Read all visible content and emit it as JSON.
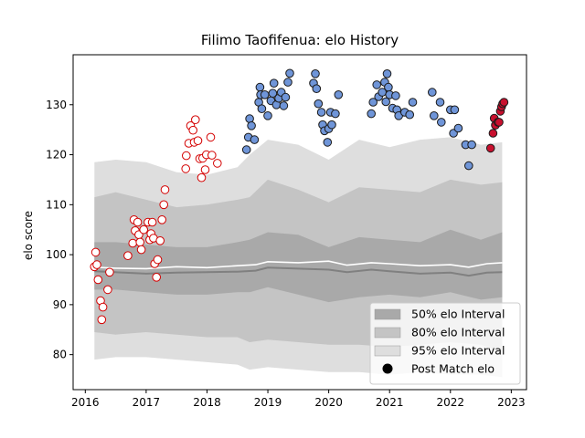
{
  "chart_data": {
    "type": "scatter",
    "title": "Filimo Taofifenua: elo History",
    "xlabel": "",
    "ylabel": "elo score",
    "xlim": [
      2015.8,
      2023.25
    ],
    "ylim": [
      73,
      140
    ],
    "x_ticks": [
      2016,
      2017,
      2018,
      2019,
      2020,
      2021,
      2022,
      2023
    ],
    "y_ticks": [
      80,
      90,
      100,
      110,
      120,
      130
    ],
    "grid": false,
    "legend_position": "lower-right",
    "legend": [
      {
        "label": "50% elo Interval",
        "kind": "band",
        "color": "#a9a9a9"
      },
      {
        "label": "80% elo Interval",
        "kind": "band",
        "color": "#c4c4c4"
      },
      {
        "label": "95% elo Interval",
        "kind": "band",
        "color": "#dedede"
      },
      {
        "label": "Post Match elo",
        "kind": "marker",
        "color": "#000000"
      }
    ],
    "bands": {
      "x": [
        2016.15,
        2016.5,
        2017.0,
        2017.5,
        2018.0,
        2018.5,
        2018.7,
        2019.0,
        2019.5,
        2020.0,
        2020.5,
        2021.0,
        2021.5,
        2022.0,
        2022.5,
        2022.85
      ],
      "p95_upper": [
        118.5,
        119.0,
        118.5,
        116.5,
        116.0,
        117.5,
        120.0,
        123.0,
        122.0,
        119.0,
        123.0,
        121.5,
        123.0,
        123.5,
        122.0,
        122.5
      ],
      "p80_upper": [
        111.5,
        112.5,
        111.0,
        109.5,
        110.0,
        111.0,
        111.5,
        115.0,
        113.0,
        110.5,
        113.5,
        113.0,
        112.5,
        115.0,
        114.0,
        114.5
      ],
      "p50_upper": [
        102.5,
        102.5,
        102.0,
        101.5,
        101.5,
        102.5,
        103.0,
        104.5,
        104.0,
        101.5,
        103.5,
        103.0,
        102.5,
        105.0,
        103.0,
        104.5
      ],
      "p50_lower": [
        93.0,
        93.0,
        92.5,
        92.0,
        92.0,
        92.5,
        92.5,
        93.5,
        92.0,
        90.5,
        91.5,
        92.0,
        91.5,
        92.5,
        91.0,
        91.5
      ],
      "p80_lower": [
        84.5,
        84.0,
        84.5,
        84.0,
        83.5,
        83.5,
        82.5,
        83.0,
        82.5,
        82.0,
        82.0,
        81.5,
        82.0,
        82.5,
        82.0,
        80.5
      ],
      "p95_lower": [
        79.0,
        79.5,
        79.5,
        79.0,
        78.5,
        78.0,
        77.0,
        77.5,
        77.0,
        76.5,
        76.5,
        76.0,
        76.5,
        76.0,
        76.0,
        75.5
      ]
    },
    "median_line": {
      "x": [
        2016.15,
        2016.5,
        2017.0,
        2017.5,
        2018.0,
        2018.5,
        2018.8,
        2019.0,
        2019.5,
        2020.0,
        2020.3,
        2020.7,
        2021.0,
        2021.5,
        2022.0,
        2022.3,
        2022.6,
        2022.85
      ],
      "y": [
        96.7,
        96.5,
        96.2,
        96.4,
        96.5,
        96.6,
        96.8,
        97.4,
        97.2,
        97.0,
        96.5,
        97.0,
        96.7,
        96.2,
        96.4,
        95.8,
        96.4,
        96.5
      ]
    },
    "mean_line": {
      "x": [
        2016.15,
        2016.5,
        2017.0,
        2017.5,
        2018.0,
        2018.5,
        2018.8,
        2019.0,
        2019.5,
        2020.0,
        2020.3,
        2020.7,
        2021.0,
        2021.5,
        2022.0,
        2022.3,
        2022.6,
        2022.85
      ],
      "y": [
        97.5,
        97.3,
        97.2,
        97.6,
        97.4,
        97.8,
        98.0,
        98.6,
        98.4,
        98.7,
        97.9,
        98.4,
        98.2,
        97.8,
        98.0,
        97.5,
        98.2,
        98.4
      ]
    },
    "series": [
      {
        "color_fill": "#ffffff",
        "color_edge": "#d40000",
        "points": [
          [
            2016.15,
            97.6
          ],
          [
            2016.17,
            100.5
          ],
          [
            2016.19,
            98.0
          ],
          [
            2016.21,
            95.0
          ],
          [
            2016.25,
            90.8
          ],
          [
            2016.27,
            87.0
          ],
          [
            2016.29,
            89.5
          ],
          [
            2016.37,
            93.0
          ],
          [
            2016.4,
            96.5
          ],
          [
            2016.7,
            99.8
          ],
          [
            2016.78,
            102.3
          ],
          [
            2016.8,
            107.0
          ],
          [
            2016.82,
            104.8
          ],
          [
            2016.86,
            106.5
          ],
          [
            2016.88,
            104.0
          ],
          [
            2016.9,
            102.5
          ],
          [
            2016.92,
            101.0
          ],
          [
            2016.96,
            105.0
          ],
          [
            2017.03,
            106.5
          ],
          [
            2017.06,
            103.0
          ],
          [
            2017.08,
            104.2
          ],
          [
            2017.1,
            106.5
          ],
          [
            2017.12,
            103.3
          ],
          [
            2017.14,
            98.2
          ],
          [
            2017.17,
            95.5
          ],
          [
            2017.19,
            99.0
          ],
          [
            2017.23,
            102.8
          ],
          [
            2017.26,
            107.0
          ],
          [
            2017.29,
            110.0
          ],
          [
            2017.31,
            113.0
          ],
          [
            2017.65,
            117.2
          ],
          [
            2017.66,
            119.8
          ],
          [
            2017.7,
            122.3
          ],
          [
            2017.73,
            125.8
          ],
          [
            2017.77,
            124.9
          ],
          [
            2017.79,
            122.5
          ],
          [
            2017.81,
            127.0
          ],
          [
            2017.85,
            122.8
          ],
          [
            2017.88,
            119.2
          ],
          [
            2017.91,
            115.4
          ],
          [
            2017.93,
            119.3
          ],
          [
            2017.97,
            117.0
          ],
          [
            2017.99,
            120.0
          ],
          [
            2018.06,
            123.5
          ],
          [
            2018.08,
            119.9
          ],
          [
            2018.17,
            118.3
          ]
        ]
      },
      {
        "color_fill": "#6f95d8",
        "color_edge": "#1a1a1a",
        "points": [
          [
            2018.65,
            121.0
          ],
          [
            2018.68,
            123.5
          ],
          [
            2018.7,
            127.2
          ],
          [
            2018.73,
            125.8
          ],
          [
            2018.78,
            123.0
          ],
          [
            2018.85,
            130.5
          ],
          [
            2018.87,
            133.5
          ],
          [
            2018.88,
            132.0
          ],
          [
            2018.9,
            129.2
          ],
          [
            2018.95,
            132.0
          ],
          [
            2019.0,
            127.8
          ],
          [
            2019.05,
            130.8
          ],
          [
            2019.08,
            132.3
          ],
          [
            2019.1,
            134.3
          ],
          [
            2019.14,
            130.0
          ],
          [
            2019.18,
            131.3
          ],
          [
            2019.22,
            132.5
          ],
          [
            2019.26,
            129.8
          ],
          [
            2019.29,
            131.5
          ],
          [
            2019.33,
            134.5
          ],
          [
            2019.36,
            136.3
          ],
          [
            2019.75,
            134.3
          ],
          [
            2019.78,
            136.2
          ],
          [
            2019.8,
            133.2
          ],
          [
            2019.83,
            130.2
          ],
          [
            2019.88,
            128.5
          ],
          [
            2019.9,
            126.0
          ],
          [
            2019.93,
            124.8
          ],
          [
            2019.98,
            122.5
          ],
          [
            2020.0,
            125.2
          ],
          [
            2020.03,
            128.5
          ],
          [
            2020.05,
            126.0
          ],
          [
            2020.11,
            128.2
          ],
          [
            2020.16,
            132.0
          ],
          [
            2020.7,
            128.2
          ],
          [
            2020.73,
            130.5
          ],
          [
            2020.79,
            134.0
          ],
          [
            2020.82,
            131.6
          ],
          [
            2020.88,
            132.5
          ],
          [
            2020.92,
            134.5
          ],
          [
            2020.94,
            130.6
          ],
          [
            2020.96,
            136.2
          ],
          [
            2020.98,
            133.5
          ],
          [
            2021.0,
            132.0
          ],
          [
            2021.05,
            129.3
          ],
          [
            2021.1,
            131.8
          ],
          [
            2021.12,
            129.0
          ],
          [
            2021.15,
            127.8
          ],
          [
            2021.25,
            128.5
          ],
          [
            2021.33,
            128.0
          ],
          [
            2021.38,
            130.5
          ],
          [
            2021.7,
            132.5
          ],
          [
            2021.73,
            127.8
          ],
          [
            2021.83,
            130.5
          ],
          [
            2021.85,
            126.5
          ],
          [
            2022.0,
            129.0
          ],
          [
            2022.05,
            124.3
          ],
          [
            2022.07,
            129.0
          ],
          [
            2022.13,
            125.3
          ],
          [
            2022.25,
            122.0
          ],
          [
            2022.3,
            117.8
          ],
          [
            2022.35,
            122.0
          ]
        ]
      },
      {
        "color_fill": "#c8102e",
        "color_edge": "#1a1a1a",
        "points": [
          [
            2022.66,
            121.3
          ],
          [
            2022.7,
            124.3
          ],
          [
            2022.72,
            127.3
          ],
          [
            2022.74,
            125.9
          ],
          [
            2022.78,
            126.5
          ],
          [
            2022.8,
            126.5
          ],
          [
            2022.82,
            128.7
          ],
          [
            2022.84,
            129.6
          ],
          [
            2022.86,
            130.2
          ],
          [
            2022.88,
            130.5
          ]
        ]
      }
    ]
  }
}
